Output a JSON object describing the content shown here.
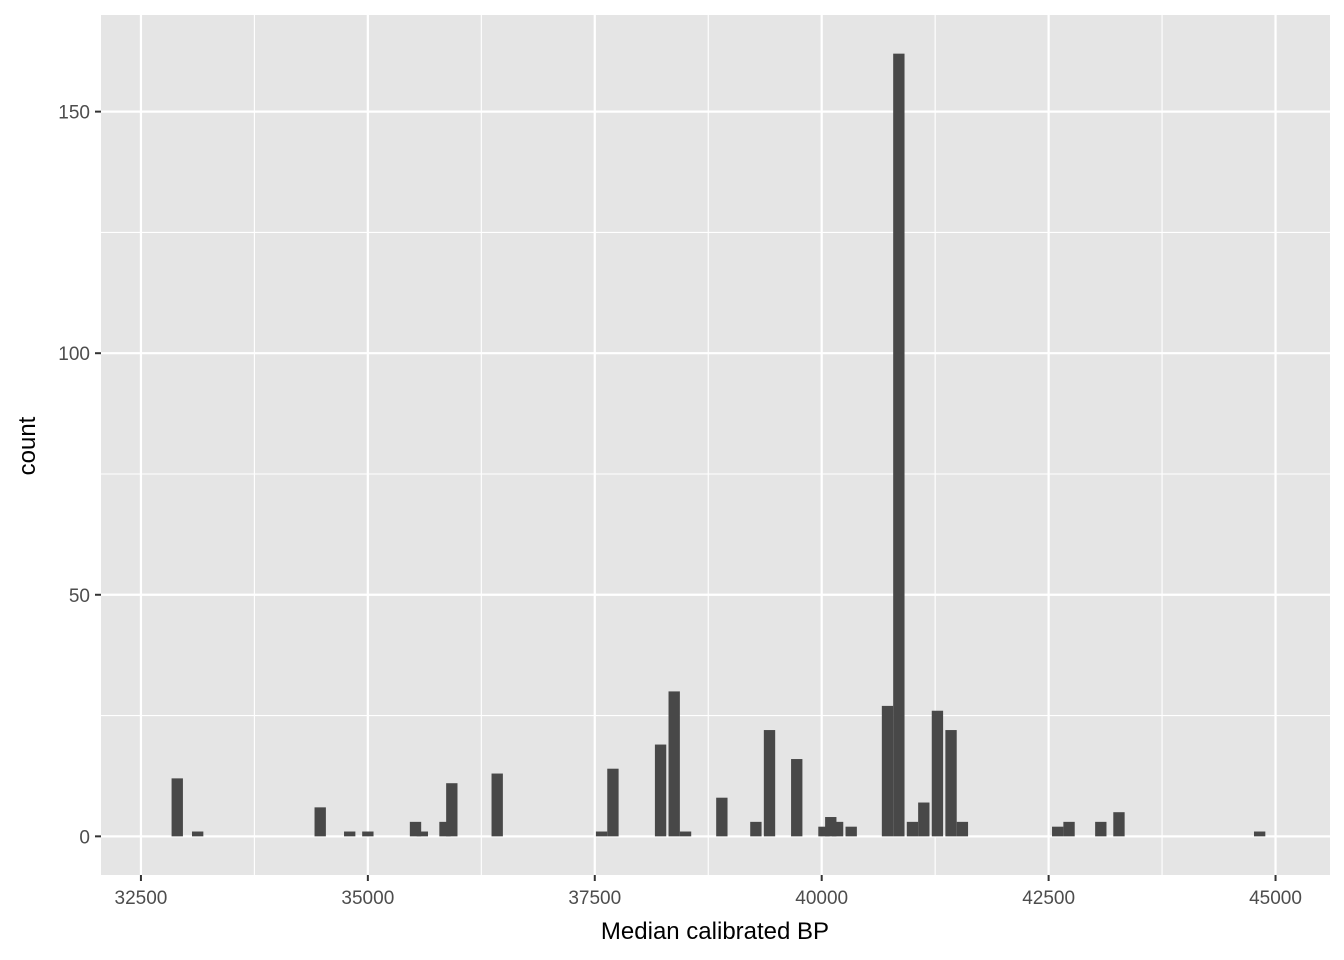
{
  "chart_data": {
    "type": "bar",
    "title": "",
    "xlabel": "Median calibrated BP",
    "ylabel": "count",
    "xlim": [
      32060,
      45600
    ],
    "ylim": [
      -8,
      170
    ],
    "x_ticks": [
      32500,
      35000,
      37500,
      40000,
      42500,
      45000
    ],
    "y_ticks": [
      0,
      50,
      100,
      150
    ],
    "grid": true,
    "bin_width": 125,
    "bins": [
      {
        "x": 32900,
        "count": 12
      },
      {
        "x": 33125,
        "count": 1
      },
      {
        "x": 34475,
        "count": 6
      },
      {
        "x": 34800,
        "count": 1
      },
      {
        "x": 35000,
        "count": 1
      },
      {
        "x": 35525,
        "count": 3
      },
      {
        "x": 35600,
        "count": 1
      },
      {
        "x": 35850,
        "count": 3
      },
      {
        "x": 35925,
        "count": 11
      },
      {
        "x": 36425,
        "count": 13
      },
      {
        "x": 37575,
        "count": 1
      },
      {
        "x": 37700,
        "count": 14
      },
      {
        "x": 38225,
        "count": 19
      },
      {
        "x": 38375,
        "count": 30
      },
      {
        "x": 38500,
        "count": 1
      },
      {
        "x": 38900,
        "count": 8
      },
      {
        "x": 39275,
        "count": 3
      },
      {
        "x": 39425,
        "count": 22
      },
      {
        "x": 39725,
        "count": 16
      },
      {
        "x": 40025,
        "count": 2
      },
      {
        "x": 40100,
        "count": 4
      },
      {
        "x": 40175,
        "count": 3
      },
      {
        "x": 40325,
        "count": 2
      },
      {
        "x": 40725,
        "count": 27
      },
      {
        "x": 40850,
        "count": 162
      },
      {
        "x": 41000,
        "count": 3
      },
      {
        "x": 41125,
        "count": 7
      },
      {
        "x": 41275,
        "count": 26
      },
      {
        "x": 41425,
        "count": 22
      },
      {
        "x": 41550,
        "count": 3
      },
      {
        "x": 42600,
        "count": 2
      },
      {
        "x": 42725,
        "count": 3
      },
      {
        "x": 43075,
        "count": 3
      },
      {
        "x": 43275,
        "count": 5
      },
      {
        "x": 44825,
        "count": 1
      }
    ],
    "colors": {
      "panel": "#e5e5e5",
      "grid_major": "#ffffff",
      "bar": "#484848",
      "tick_text": "#4d4d4d",
      "axis_text": "#000000"
    }
  }
}
